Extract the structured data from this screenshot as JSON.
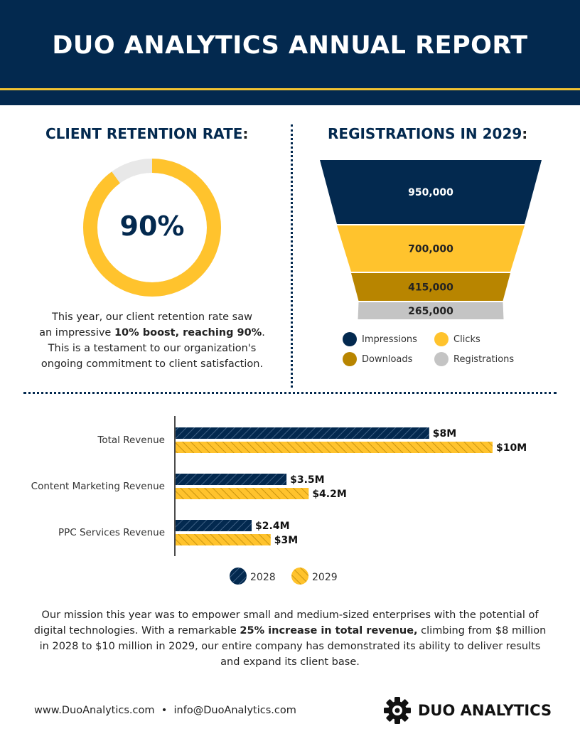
{
  "header": {
    "title": "DUO ANALYTICS ANNUAL REPORT"
  },
  "retention": {
    "title": "CLIENT RETENTION RATE",
    "colon": ":",
    "value_label": "90%",
    "value": 90,
    "text_1": "This year, our client retention rate saw",
    "text_2": "an impressive ",
    "text_bold": "10% boost, reaching 90%",
    "text_3": ".",
    "text_4": "This is a testament to our organization's",
    "text_5": "ongoing commitment to client satisfaction."
  },
  "registrations": {
    "title": "REGISTRATIONS IN 2029",
    "colon": ":",
    "stages": [
      {
        "name": "Impressions",
        "value": 950000,
        "label": "950,000",
        "color": "#03294f",
        "text_color": "#ffffff"
      },
      {
        "name": "Clicks",
        "value": 700000,
        "label": "700,000",
        "color": "#ffc32d",
        "text_color": "#222222"
      },
      {
        "name": "Downloads",
        "value": 415000,
        "label": "415,000",
        "color": "#b88500",
        "text_color": "#222222"
      },
      {
        "name": "Registrations",
        "value": 265000,
        "label": "265,000",
        "color": "#c4c4c4",
        "text_color": "#222222"
      }
    ]
  },
  "chart_data": {
    "type": "bar",
    "orientation": "horizontal",
    "categories": [
      "Total Revenue",
      "Content Marketing Revenue",
      "PPC Services Revenue"
    ],
    "series": [
      {
        "name": "2028",
        "values": [
          8,
          3.5,
          2.4
        ],
        "labels": [
          "$8M",
          "$3.5M",
          "$2.4M"
        ],
        "color": "#03294f"
      },
      {
        "name": "2029",
        "values": [
          10,
          4.2,
          3
        ],
        "labels": [
          "$10M",
          "$4.2M",
          "$3M"
        ],
        "color": "#ffc32d"
      }
    ],
    "unit": "$M",
    "legend": "bottom",
    "grid": false
  },
  "mission": {
    "text_1": "Our mission this year was to empower small and medium-sized enterprises with the potential of digital technologies. With a remarkable ",
    "text_bold": "25% increase in total revenue,",
    "text_2": " climbing from $8 million in 2028 to $10 million in 2029, our entire company has demonstrated its ability to deliver results and expand its client base."
  },
  "footer": {
    "website": "www.DuoAnalytics.com",
    "separator": "•",
    "email": "info@DuoAnalytics.com",
    "logo_text": "DUO ANALYTICS"
  }
}
